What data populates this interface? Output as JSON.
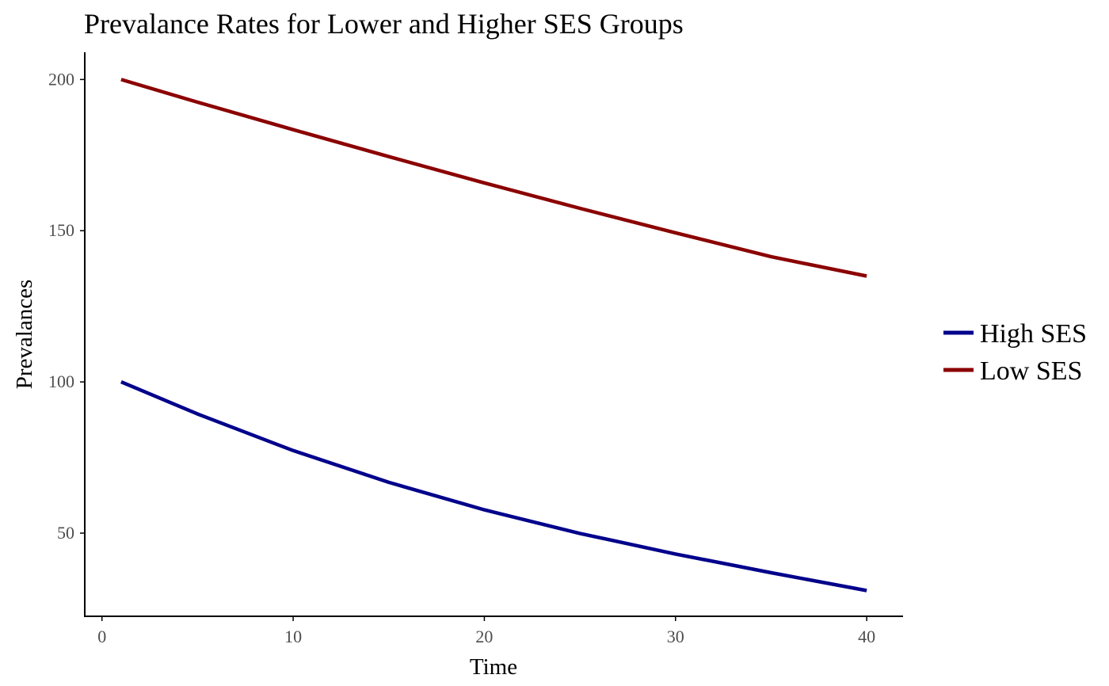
{
  "chart_data": {
    "type": "line",
    "title": "Prevalance Rates for Lower and Higher SES Groups",
    "xlabel": "Time",
    "ylabel": "Prevalances",
    "xlim": [
      -0.9,
      41.9
    ],
    "ylim": [
      22.5,
      209
    ],
    "x_ticks": [
      0,
      10,
      20,
      30,
      40
    ],
    "y_ticks": [
      50,
      100,
      150,
      200
    ],
    "grid": false,
    "legend_position": "right",
    "series": [
      {
        "name": "High SES",
        "color": "#00008b",
        "x": [
          1,
          5,
          10,
          15,
          20,
          25,
          30,
          35,
          40
        ],
        "y": [
          100,
          89.4,
          77.3,
          66.8,
          57.7,
          49.9,
          43.1,
          36.9,
          31
        ]
      },
      {
        "name": "Low SES",
        "color": "#8b0000",
        "x": [
          1,
          5,
          10,
          15,
          20,
          25,
          30,
          35,
          40
        ],
        "y": [
          200,
          192.5,
          183.4,
          174.5,
          165.8,
          157.4,
          149.3,
          141.4,
          135
        ]
      }
    ]
  }
}
